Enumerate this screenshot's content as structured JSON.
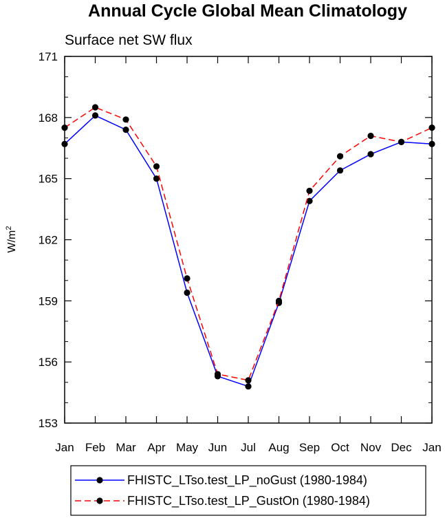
{
  "chart_data": {
    "type": "line",
    "title": "Annual Cycle Global Mean Climatology",
    "subtitle": "Surface net SW flux",
    "ylabel": "W/m",
    "ylabel_superscript": "2",
    "xlabel": "",
    "categories": [
      "Jan",
      "Feb",
      "Mar",
      "Apr",
      "May",
      "Jun",
      "Jul",
      "Aug",
      "Sep",
      "Oct",
      "Nov",
      "Dec",
      "Jan"
    ],
    "ylim": [
      153,
      171
    ],
    "yticks": [
      153,
      156,
      159,
      162,
      165,
      168,
      171
    ],
    "y_minor_step": 1,
    "grid": false,
    "legend_position": "bottom-center",
    "series": [
      {
        "name": "FHISTC_LTso.test_LP_noGust (1980-1984)",
        "color": "#0000ff",
        "dash": "solid",
        "values": [
          166.7,
          168.1,
          167.4,
          165.0,
          159.4,
          155.3,
          154.8,
          158.9,
          163.9,
          165.4,
          166.2,
          166.8,
          166.7
        ]
      },
      {
        "name": "FHISTC_LTso.test_LP_GustOn (1980-1984)",
        "color": "#ff0000",
        "dash": "dashed",
        "values": [
          167.5,
          168.5,
          167.9,
          165.6,
          160.1,
          155.4,
          155.1,
          159.0,
          164.4,
          166.1,
          167.1,
          166.8,
          167.5
        ]
      }
    ]
  }
}
